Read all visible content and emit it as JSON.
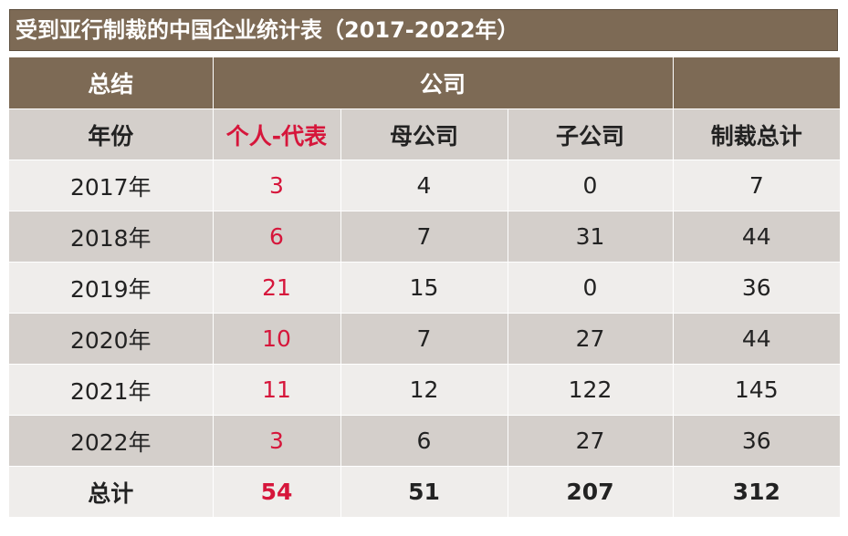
{
  "title": "受到亚行制裁的中国企业统计表（2017-2022年）",
  "colors": {
    "header_bg": "#7d6a55",
    "row_light": "#efedeb",
    "row_dark": "#d4cfcb",
    "accent_red": "#d6163b"
  },
  "header_row1": {
    "summary": "总结",
    "company": "公司",
    "blank": ""
  },
  "header_row2": [
    "年份",
    "个人-代表",
    "母公司",
    "子公司",
    "制裁总计"
  ],
  "rows": [
    {
      "year": "2017年",
      "individual": "3",
      "parent": "4",
      "subsidiary": "0",
      "total": "7"
    },
    {
      "year": "2018年",
      "individual": "6",
      "parent": "7",
      "subsidiary": "31",
      "total": "44"
    },
    {
      "year": "2019年",
      "individual": "21",
      "parent": "15",
      "subsidiary": "0",
      "total": "36"
    },
    {
      "year": "2020年",
      "individual": "10",
      "parent": "7",
      "subsidiary": "27",
      "total": "44"
    },
    {
      "year": "2021年",
      "individual": "11",
      "parent": "12",
      "subsidiary": "122",
      "total": "145"
    },
    {
      "year": "2022年",
      "individual": "3",
      "parent": "6",
      "subsidiary": "27",
      "total": "36"
    }
  ],
  "totals": {
    "label": "总计",
    "individual": "54",
    "parent": "51",
    "subsidiary": "207",
    "total": "312"
  }
}
